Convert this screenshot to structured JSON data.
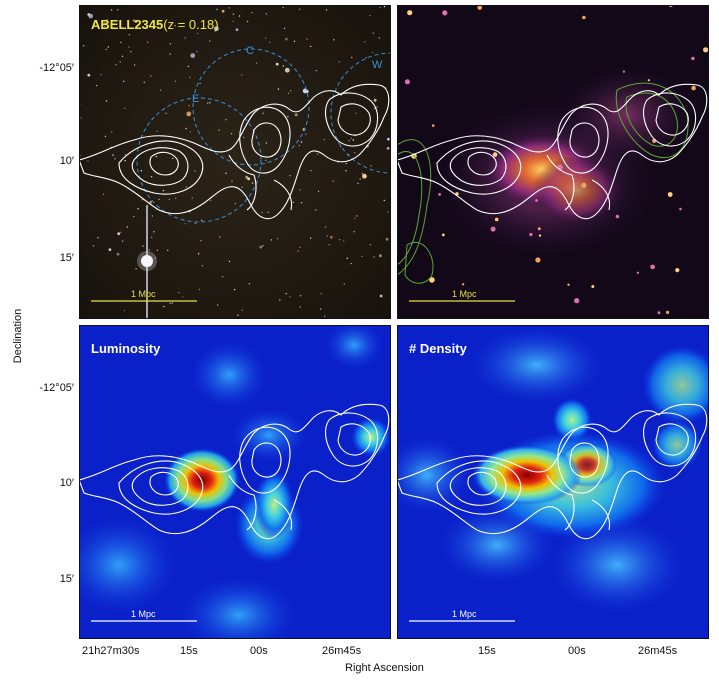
{
  "figure": {
    "panel_top_left": {
      "cluster_name": "ABELL2345",
      "redshift": "(z = 0.18)",
      "subcluster_labels": [
        "E",
        "C",
        "W"
      ],
      "scalebar": "1 Mpc",
      "scalebar_color": "#e8e040"
    },
    "panel_top_right": {
      "scalebar": "1 Mpc",
      "scalebar_color": "#e8e040"
    },
    "panel_bottom_left": {
      "title": "Luminosity",
      "scalebar": "1 Mpc"
    },
    "panel_bottom_right": {
      "title": "# Density",
      "scalebar": "1 Mpc"
    },
    "y_axis": {
      "title": "Declination",
      "ticks": [
        "-12°05′",
        "10′",
        "15′"
      ]
    },
    "x_axis": {
      "title": "Right Ascension",
      "ticks": [
        "21h27m30s",
        "15s",
        "00s",
        "26m45s"
      ]
    },
    "colors": {
      "contour": "#ffffff",
      "green_contour": "#5aa832",
      "circle": "#3a8fd9",
      "title_yellow": "#f2e63a"
    }
  }
}
